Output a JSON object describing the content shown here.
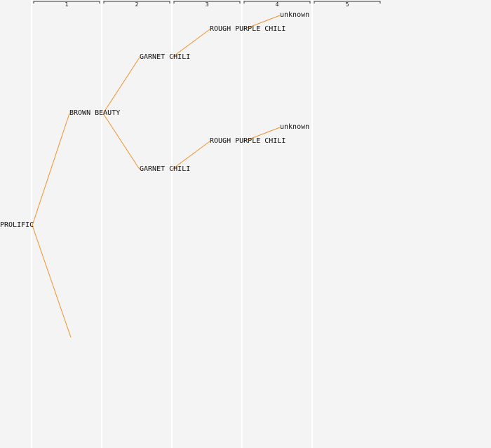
{
  "generations": [
    "1",
    "2",
    "3",
    "4",
    "5"
  ],
  "colors": {
    "background": "#f4f4f4",
    "column_divider": "#ffffff",
    "edge": "#f0922a",
    "bracket": "#333333",
    "text": "#111111"
  },
  "nodes": {
    "root": "PROLIFIC",
    "sire": "BROWN BEAUTY",
    "sire_sire": "GARNET CHILI",
    "sire_dam": "GARNET CHILI",
    "sire_sire_sire": "ROUGH PURPLE CHILI",
    "sire_dam_sire": "ROUGH PURPLE CHILI",
    "sire_sire_sire_sire": "unknown",
    "sire_dam_sire_sire": "unknown"
  }
}
